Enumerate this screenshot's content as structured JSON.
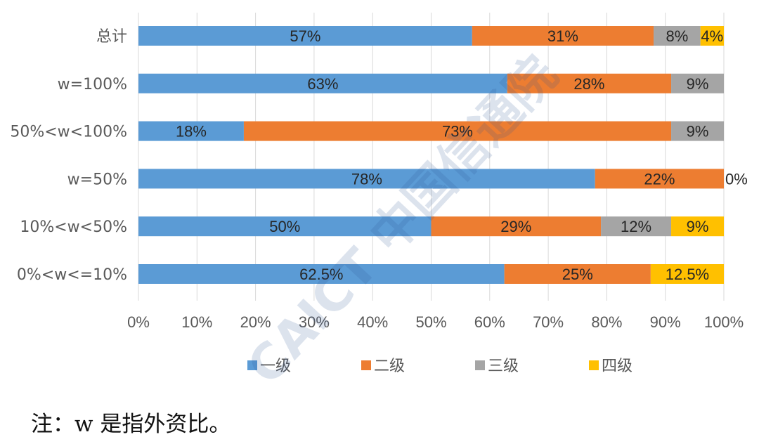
{
  "chart_data": {
    "type": "bar",
    "orientation": "horizontal",
    "stacked": true,
    "categories": [
      "总计",
      "w=100%",
      "50%<w<100%",
      "w=50%",
      "10%<w<50%",
      "0%<w<=10%"
    ],
    "series": [
      {
        "name": "一级",
        "color": "#5B9BD5",
        "values": [
          57,
          63,
          18,
          78,
          50,
          62.5
        ],
        "labels": [
          "57%",
          "63%",
          "18%",
          "78%",
          "50%",
          "62.5%"
        ]
      },
      {
        "name": "二级",
        "color": "#ED7D31",
        "values": [
          31,
          28,
          73,
          22,
          29,
          25
        ],
        "labels": [
          "31%",
          "28%",
          "73%",
          "22%",
          "29%",
          "25%"
        ]
      },
      {
        "name": "三级",
        "color": "#A5A5A5",
        "values": [
          8,
          9,
          9,
          0,
          12,
          0
        ],
        "labels": [
          "8%",
          "9%",
          "9%",
          "0%",
          "12%",
          ""
        ]
      },
      {
        "name": "四级",
        "color": "#FFC000",
        "values": [
          4,
          0,
          0,
          0,
          9,
          12.5
        ],
        "labels": [
          "4%",
          "",
          "",
          "",
          "9%",
          "12.5%"
        ]
      }
    ],
    "xlim": [
      0,
      100
    ],
    "x_ticks": [
      "0%",
      "10%",
      "20%",
      "30%",
      "40%",
      "50%",
      "60%",
      "70%",
      "80%",
      "90%",
      "100%"
    ],
    "grid": "vertical",
    "legend_position": "bottom"
  },
  "note": "注：w 是指外资比。",
  "watermark": "CAICT 中国信通院"
}
